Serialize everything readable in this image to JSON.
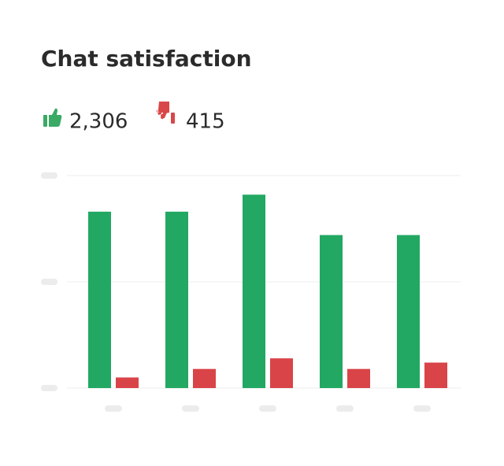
{
  "chart_data": {
    "type": "bar",
    "title": "Chat satisfaction",
    "summary": [
      {
        "value": 2306,
        "label": "2,306",
        "color": "#3aaa64"
      },
      {
        "value": 415,
        "label": "415",
        "color": "#d9474a"
      }
    ],
    "categories": [
      null,
      null,
      null,
      null,
      null
    ],
    "series": [
      {
        "color": "#22a862",
        "values": [
          83,
          83,
          91,
          72,
          72
        ]
      },
      {
        "color": "#d94448",
        "values": [
          5,
          9,
          14,
          9,
          12
        ]
      }
    ],
    "ylim": [
      0,
      100
    ],
    "yticks": [
      0,
      50,
      100
    ],
    "grid": true
  }
}
